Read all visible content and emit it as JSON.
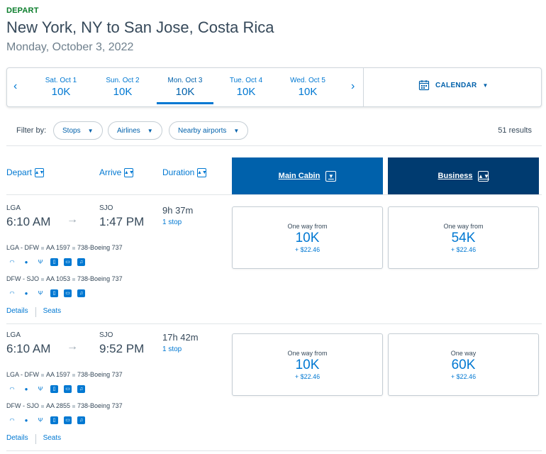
{
  "header": {
    "tag": "DEPART",
    "route": "New York, NY to San Jose, Costa Rica",
    "date": "Monday, October 3, 2022"
  },
  "datebar": {
    "prev_icon": "chevron-left-icon",
    "next_icon": "chevron-right-icon",
    "dates": [
      {
        "label": "Sat. Oct 1",
        "price": "10K"
      },
      {
        "label": "Sun. Oct 2",
        "price": "10K"
      },
      {
        "label": "Mon. Oct 3",
        "price": "10K",
        "selected": true
      },
      {
        "label": "Tue. Oct 4",
        "price": "10K"
      },
      {
        "label": "Wed. Oct 5",
        "price": "10K"
      }
    ],
    "calendar_label": "CALENDAR",
    "calendar_icon": "calendar-icon"
  },
  "filters": {
    "label": "Filter by:",
    "stops": "Stops",
    "airlines": "Airlines",
    "nearby": "Nearby airports",
    "results": "51 results"
  },
  "columns": {
    "depart": "Depart",
    "arrive": "Arrive",
    "duration": "Duration",
    "main_cabin": "Main Cabin",
    "business": "Business"
  },
  "flights": [
    {
      "from": "LGA",
      "depart_time": "6:10 AM",
      "to": "SJO",
      "arrive_time": "1:47 PM",
      "duration": "9h 37m",
      "stops": "1 stop",
      "segments": [
        {
          "route": "LGA - DFW",
          "flight": "AA 1597",
          "aircraft": "738-Boeing 737"
        },
        {
          "route": "DFW - SJO",
          "flight": "AA 1053",
          "aircraft": "738-Boeing 737"
        }
      ],
      "main": {
        "label": "One way from",
        "price": "10K",
        "tax": "+ $22.46"
      },
      "business": {
        "label": "One way from",
        "price": "54K",
        "tax": "+ $22.46"
      },
      "details": "Details",
      "seats": "Seats"
    },
    {
      "from": "LGA",
      "depart_time": "6:10 AM",
      "to": "SJO",
      "arrive_time": "9:52 PM",
      "duration": "17h 42m",
      "stops": "1 stop",
      "segments": [
        {
          "route": "LGA - DFW",
          "flight": "AA 1597",
          "aircraft": "738-Boeing 737"
        },
        {
          "route": "DFW - SJO",
          "flight": "AA 2855",
          "aircraft": "738-Boeing 737"
        }
      ],
      "main": {
        "label": "One way from",
        "price": "10K",
        "tax": "+ $22.46"
      },
      "business": {
        "label": "One way",
        "price": "60K",
        "tax": "+ $22.46"
      },
      "details": "Details",
      "seats": "Seats"
    }
  ],
  "amenity_icons": [
    "wifi-icon",
    "power-icon",
    "usb-icon",
    "device-icon",
    "tv-icon",
    "music-icon"
  ],
  "colors": {
    "brand": "#0078d2",
    "main_cabin": "#0061ab",
    "business": "#003b70",
    "depart_tag": "#0a7d2b"
  }
}
